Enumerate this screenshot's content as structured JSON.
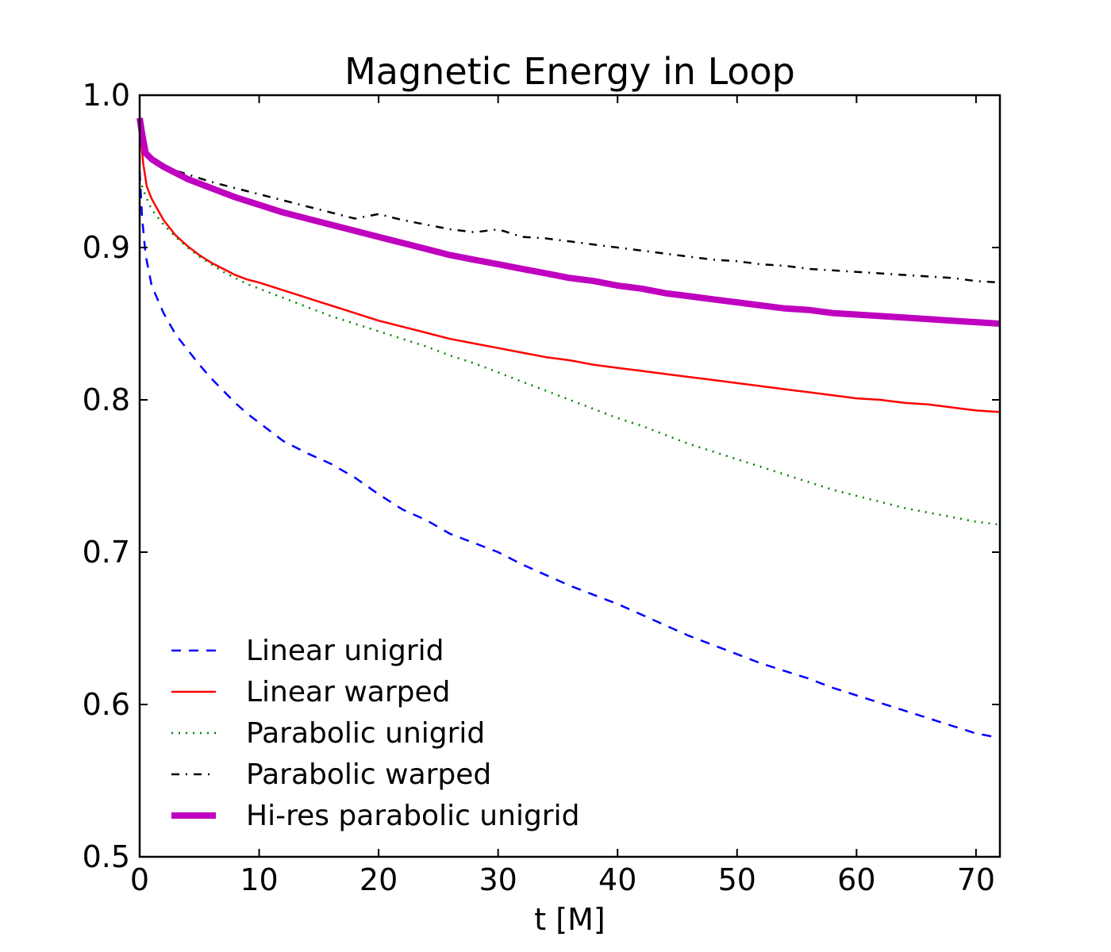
{
  "chart_data": {
    "type": "line",
    "title": "Magnetic Energy in Loop",
    "xlabel": "t [M]",
    "ylabel": "",
    "xlim": [
      0,
      72
    ],
    "ylim": [
      0.5,
      1.0
    ],
    "xticks": [
      0,
      10,
      20,
      30,
      40,
      50,
      60,
      70
    ],
    "yticks": [
      0.5,
      0.6,
      0.7,
      0.8,
      0.9,
      1.0
    ],
    "xtick_labels": [
      "0",
      "10",
      "20",
      "30",
      "40",
      "50",
      "60",
      "70"
    ],
    "ytick_labels": [
      "0.5",
      "0.6",
      "0.7",
      "0.8",
      "0.9",
      "1.0"
    ],
    "grid": false,
    "legend_position": "lower-left",
    "series": [
      {
        "name": "Linear unigrid",
        "color": "#0000ff",
        "style": "dashed",
        "x": [
          0,
          0.2,
          0.5,
          1,
          2,
          3,
          4,
          5,
          6,
          7,
          8,
          9,
          10,
          12,
          14,
          16,
          18,
          20,
          22,
          24,
          26,
          28,
          30,
          32,
          34,
          36,
          38,
          40,
          42,
          44,
          46,
          48,
          50,
          52,
          54,
          56,
          58,
          60,
          62,
          64,
          66,
          68,
          70,
          72
        ],
        "y": [
          0.95,
          0.92,
          0.895,
          0.875,
          0.857,
          0.843,
          0.833,
          0.823,
          0.814,
          0.806,
          0.798,
          0.791,
          0.785,
          0.773,
          0.765,
          0.758,
          0.749,
          0.738,
          0.728,
          0.721,
          0.712,
          0.706,
          0.7,
          0.692,
          0.685,
          0.678,
          0.672,
          0.666,
          0.659,
          0.652,
          0.645,
          0.639,
          0.633,
          0.627,
          0.622,
          0.617,
          0.611,
          0.606,
          0.601,
          0.596,
          0.591,
          0.586,
          0.581,
          0.578
        ]
      },
      {
        "name": "Linear warped",
        "color": "#ff0000",
        "style": "solid",
        "x": [
          0,
          0.3,
          0.6,
          1,
          2,
          3,
          4,
          5,
          6,
          7,
          8,
          9,
          10,
          12,
          14,
          16,
          18,
          20,
          22,
          24,
          26,
          28,
          30,
          32,
          34,
          36,
          38,
          40,
          42,
          44,
          46,
          48,
          50,
          52,
          54,
          56,
          58,
          60,
          62,
          64,
          66,
          68,
          70,
          72
        ],
        "y": [
          0.98,
          0.955,
          0.94,
          0.932,
          0.918,
          0.908,
          0.901,
          0.895,
          0.89,
          0.886,
          0.882,
          0.879,
          0.877,
          0.872,
          0.867,
          0.862,
          0.857,
          0.852,
          0.848,
          0.844,
          0.84,
          0.837,
          0.834,
          0.831,
          0.828,
          0.826,
          0.823,
          0.821,
          0.819,
          0.817,
          0.815,
          0.813,
          0.811,
          0.809,
          0.807,
          0.805,
          0.803,
          0.801,
          0.8,
          0.798,
          0.797,
          0.795,
          0.793,
          0.792
        ]
      },
      {
        "name": "Parabolic unigrid",
        "color": "#008000",
        "style": "dotted",
        "x": [
          0,
          0.3,
          0.6,
          1,
          2,
          3,
          4,
          5,
          6,
          7,
          8,
          9,
          10,
          12,
          14,
          16,
          18,
          20,
          22,
          24,
          26,
          28,
          30,
          32,
          34,
          36,
          38,
          40,
          42,
          44,
          46,
          48,
          50,
          52,
          54,
          56,
          58,
          60,
          62,
          64,
          66,
          68,
          70,
          72
        ],
        "y": [
          0.945,
          0.938,
          0.932,
          0.925,
          0.915,
          0.907,
          0.9,
          0.894,
          0.889,
          0.884,
          0.88,
          0.876,
          0.873,
          0.867,
          0.861,
          0.855,
          0.85,
          0.845,
          0.84,
          0.835,
          0.829,
          0.824,
          0.818,
          0.812,
          0.806,
          0.8,
          0.794,
          0.788,
          0.783,
          0.777,
          0.771,
          0.766,
          0.761,
          0.756,
          0.751,
          0.746,
          0.741,
          0.737,
          0.733,
          0.729,
          0.726,
          0.723,
          0.72,
          0.718
        ]
      },
      {
        "name": "Parabolic warped",
        "color": "#000000",
        "style": "dashdot",
        "x": [
          0,
          0.3,
          1,
          2,
          4,
          6,
          8,
          10,
          12,
          14,
          16,
          18,
          20,
          22,
          24,
          26,
          28,
          30,
          32,
          34,
          36,
          38,
          40,
          42,
          44,
          46,
          48,
          50,
          52,
          54,
          56,
          58,
          60,
          62,
          64,
          66,
          68,
          70,
          72
        ],
        "y": [
          0.98,
          0.962,
          0.957,
          0.953,
          0.948,
          0.943,
          0.939,
          0.935,
          0.931,
          0.927,
          0.923,
          0.919,
          0.922,
          0.918,
          0.915,
          0.912,
          0.91,
          0.912,
          0.907,
          0.906,
          0.904,
          0.902,
          0.9,
          0.898,
          0.896,
          0.894,
          0.892,
          0.891,
          0.889,
          0.888,
          0.886,
          0.885,
          0.884,
          0.883,
          0.882,
          0.881,
          0.88,
          0.878,
          0.877
        ]
      },
      {
        "name": "Hi-res parabolic unigrid",
        "color": "#bf00bf",
        "style": "thick",
        "x": [
          0,
          0.2,
          0.5,
          1,
          2,
          3,
          4,
          5,
          6,
          8,
          10,
          12,
          14,
          16,
          18,
          20,
          22,
          24,
          26,
          28,
          30,
          32,
          34,
          36,
          38,
          40,
          42,
          44,
          46,
          48,
          50,
          52,
          54,
          56,
          58,
          60,
          62,
          64,
          66,
          68,
          70,
          72
        ],
        "y": [
          0.985,
          0.975,
          0.962,
          0.958,
          0.953,
          0.949,
          0.945,
          0.942,
          0.939,
          0.933,
          0.928,
          0.923,
          0.919,
          0.915,
          0.911,
          0.907,
          0.903,
          0.899,
          0.895,
          0.892,
          0.889,
          0.886,
          0.883,
          0.88,
          0.878,
          0.875,
          0.873,
          0.87,
          0.868,
          0.866,
          0.864,
          0.862,
          0.86,
          0.859,
          0.857,
          0.856,
          0.855,
          0.854,
          0.853,
          0.852,
          0.851,
          0.85
        ]
      }
    ]
  }
}
